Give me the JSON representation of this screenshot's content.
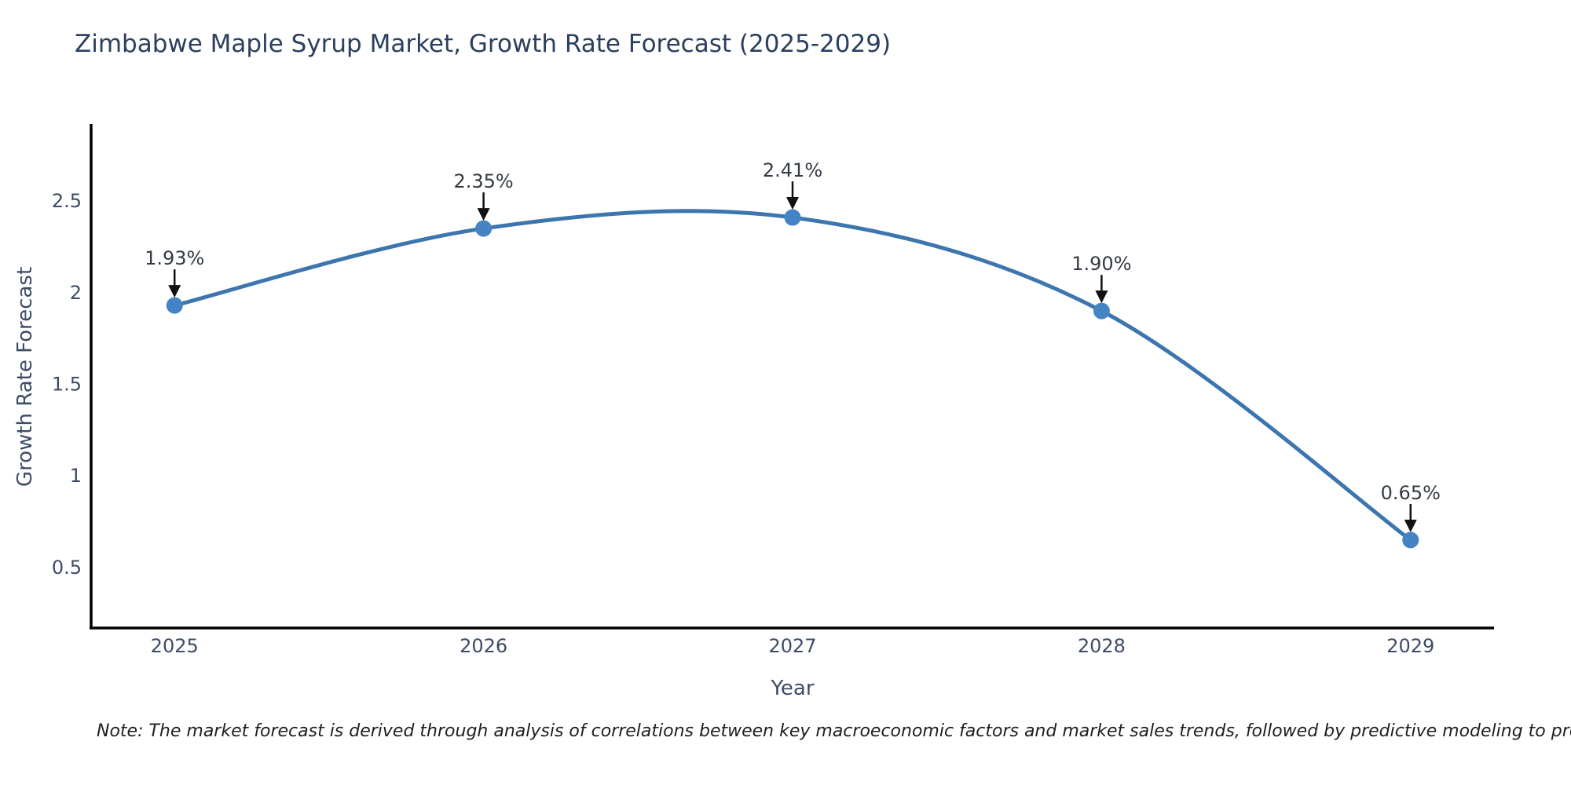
{
  "title": "Zimbabwe Maple Syrup Market, Growth Rate Forecast (2025-2029)",
  "note": "Note: The market forecast is derived through analysis of correlations between key macroeconomic factors and market sales trends, followed by predictive modeling to project future sales",
  "chart_data": {
    "type": "line",
    "line_shape": "spline",
    "x": [
      2025,
      2026,
      2027,
      2028,
      2029
    ],
    "series": [
      {
        "name": "Growth Rate Forecast",
        "values": [
          1.93,
          2.35,
          2.41,
          1.9,
          0.65
        ]
      }
    ],
    "point_labels": [
      "1.93%",
      "2.35%",
      "2.41%",
      "1.90%",
      "0.65%"
    ],
    "title": "Zimbabwe Maple Syrup Market, Growth Rate Forecast (2025-2029)",
    "xlabel": "Year",
    "ylabel": "Growth Rate Forecast",
    "xtick_labels": [
      "2025",
      "2026",
      "2027",
      "2028",
      "2029"
    ],
    "ytick_values": [
      0.5,
      1,
      1.5,
      2,
      2.5
    ],
    "ytick_labels": [
      "0.5",
      "1",
      "1.5",
      "2",
      "2.5"
    ],
    "xlim": [
      2024.73,
      2029.27
    ],
    "ylim": [
      0.17,
      2.92
    ],
    "grid": false,
    "legend": "none",
    "colors": {
      "line": "#3d76ae",
      "marker": "#4484c4",
      "arrow": "#111111",
      "axis_line": "#000000",
      "axis_text": "#3d4c66",
      "annotation": "#333a44",
      "title": "#2b3f5e",
      "background": "#ffffff"
    }
  }
}
